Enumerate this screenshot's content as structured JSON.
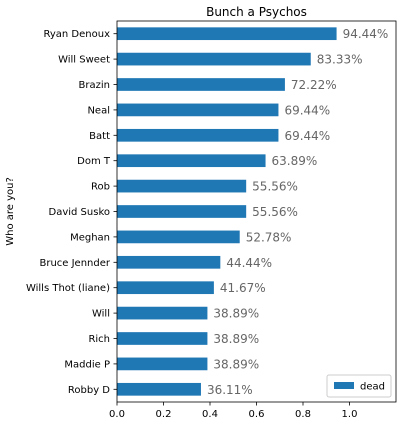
{
  "chart_data": {
    "type": "bar",
    "orientation": "horizontal",
    "title": "Bunch a Psychos",
    "xlabel": "",
    "ylabel": "Who are you?",
    "xlim": [
      0,
      1.2
    ],
    "x_ticks": [
      "0.0",
      "0.2",
      "0.4",
      "0.6",
      "0.8",
      "1.0"
    ],
    "grid": false,
    "legend_position": "bottom-right",
    "bar_color": "#1f77b4",
    "label_color": "#666666",
    "series": [
      {
        "name": "dead",
        "values": [
          0.9444,
          0.8333,
          0.7222,
          0.6944,
          0.6944,
          0.6389,
          0.5556,
          0.5556,
          0.5278,
          0.4444,
          0.4167,
          0.3889,
          0.3889,
          0.3889,
          0.3611
        ]
      }
    ],
    "categories": [
      "Ryan Denoux",
      "Will Sweet",
      "Brazin",
      "Neal",
      "Batt",
      "Dom T",
      "Rob",
      "David Susko",
      "Meghan",
      "Bruce Jennder",
      "Wills Thot (liane)",
      "Will",
      "Rich",
      "Maddie P",
      "Robby D"
    ],
    "data_labels": [
      "94.44%",
      "83.33%",
      "72.22%",
      "69.44%",
      "69.44%",
      "63.89%",
      "55.56%",
      "55.56%",
      "52.78%",
      "44.44%",
      "41.67%",
      "38.89%",
      "38.89%",
      "38.89%",
      "36.11%"
    ]
  }
}
